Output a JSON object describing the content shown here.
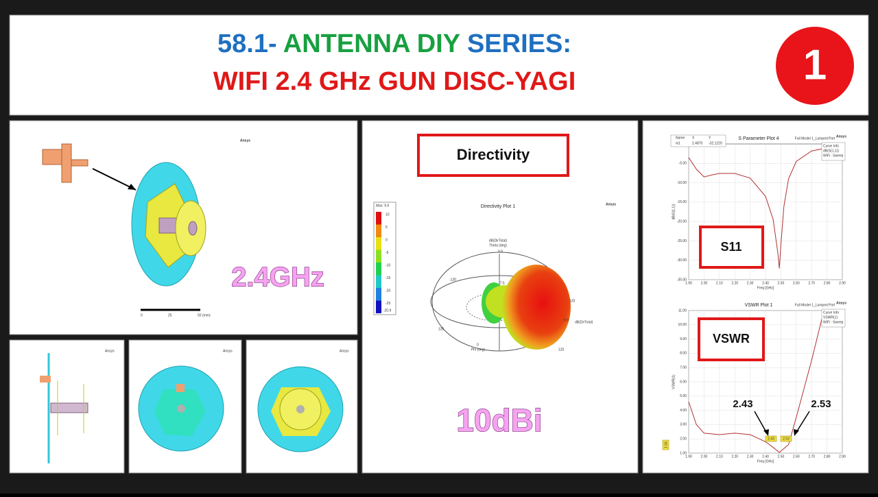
{
  "header": {
    "line1": [
      "58.1-",
      "ANTENNA DIY",
      "SERIES:"
    ],
    "line2": "WIFI 2.4 GHz GUN DISC-YAGI",
    "badge": "1"
  },
  "model_panel": {
    "brand": "Ansys",
    "label": "2.4GHz",
    "scale": [
      "0",
      "25",
      "50 (mm)"
    ]
  },
  "small_panels": [
    {
      "brand": "Ansys"
    },
    {
      "brand": "Ansys"
    },
    {
      "brand": "Ansys"
    }
  ],
  "directivity": {
    "button": "Directivity",
    "title": "Directivity Plot 1",
    "brand": "Ansys",
    "max": "Max: 9.9",
    "min": "Min: -20.9",
    "colorbar": {
      "ticks": [
        10,
        5,
        0,
        -5,
        -10,
        -15,
        -20,
        -25
      ],
      "colors": [
        "#e01010",
        "#f08a10",
        "#e8e010",
        "#8ce020",
        "#20d050",
        "#20c8c8",
        "#2080e0",
        "#1010c0"
      ]
    },
    "axis_labels": [
      "dB(DirTotal)",
      "Theta (deg)",
      "Phi (deg)",
      "dB(DirTotal)"
    ],
    "polar_labels": [
      "9.9",
      "-120",
      "-7.5",
      "120",
      "9.9",
      "120",
      "0",
      "120"
    ],
    "gain_label": "10dBi"
  },
  "s11": {
    "title": "S Parameter Plot 4",
    "subtitle": "Full Model 1_Lumped Port",
    "brand": "Ansys",
    "ylabel": "dB(S(1,1))",
    "xlabel": "Freq [GHz]",
    "legend": [
      "Curve Info",
      "dB(S(1,1))",
      "WiFi : Sweep"
    ],
    "marker_table": {
      "headers": [
        "Name",
        "X",
        "Y"
      ],
      "row": [
        "m1",
        "2.4870",
        "-32.1220"
      ]
    },
    "callout": "S11",
    "color": "#b03030",
    "x": [
      1.9,
      1.95,
      2.0,
      2.05,
      2.1,
      2.2,
      2.3,
      2.4,
      2.45,
      2.48,
      2.49,
      2.5,
      2.52,
      2.55,
      2.6,
      2.7,
      2.8,
      2.9
    ],
    "values": [
      -3.5,
      -6.5,
      -8.5,
      -8.0,
      -7.6,
      -7.6,
      -8.8,
      -13.5,
      -19.5,
      -28,
      -32.1,
      -26,
      -16,
      -9,
      -4.5,
      -1.8,
      -1.0,
      -0.9
    ],
    "xlim": [
      1.9,
      2.9
    ],
    "ylim": [
      -35,
      0
    ],
    "xticks": [
      {
        "value": 1.9,
        "label": "1.90"
      },
      {
        "value": 2.0,
        "label": "2.00"
      },
      {
        "value": 2.1,
        "label": "2.10"
      },
      {
        "value": 2.2,
        "label": "2.20"
      },
      {
        "value": 2.3,
        "label": "2.30"
      },
      {
        "value": 2.4,
        "label": "2.40"
      },
      {
        "value": 2.5,
        "label": "2.50"
      },
      {
        "value": 2.6,
        "label": "2.60"
      },
      {
        "value": 2.7,
        "label": "2.70"
      },
      {
        "value": 2.8,
        "label": "2.80"
      },
      {
        "value": 2.9,
        "label": "2.90"
      }
    ],
    "yticks": [
      {
        "value": -35,
        "label": "-35.00"
      },
      {
        "value": -30,
        "label": "-30.00"
      },
      {
        "value": -25,
        "label": "-25.00"
      },
      {
        "value": -20,
        "label": "-20.00"
      },
      {
        "value": -15,
        "label": "-15.00"
      },
      {
        "value": -10,
        "label": "-10.00"
      },
      {
        "value": -5,
        "label": "-5.00"
      }
    ]
  },
  "vswr": {
    "title": "VSWR Plot 1",
    "subtitle": "Full Model 1_Lumped Port",
    "brand": "Ansys",
    "ylabel": "VSWR(1)",
    "xlabel": "Freq [GHz]",
    "legend": [
      "Curve Info",
      "VSWR(1)",
      "WiFi : Sweep"
    ],
    "callout": "VSWR",
    "color": "#b03030",
    "annotations": [
      "2.43",
      "2.53"
    ],
    "marker_labels": [
      "2.43",
      "2.53"
    ],
    "y_marker": "1.56",
    "x": [
      1.9,
      1.95,
      2.0,
      2.1,
      2.2,
      2.3,
      2.4,
      2.45,
      2.49,
      2.55,
      2.6,
      2.7,
      2.78
    ],
    "values": [
      4.6,
      3.0,
      2.4,
      2.3,
      2.4,
      2.3,
      1.8,
      1.4,
      1.05,
      1.6,
      3.5,
      7.5,
      11.0
    ],
    "xlim": [
      1.9,
      2.9
    ],
    "ylim": [
      1,
      11
    ],
    "xticks": [
      {
        "value": 1.9,
        "label": "1.90"
      },
      {
        "value": 2.0,
        "label": "2.00"
      },
      {
        "value": 2.1,
        "label": "2.10"
      },
      {
        "value": 2.2,
        "label": "2.20"
      },
      {
        "value": 2.3,
        "label": "2.30"
      },
      {
        "value": 2.4,
        "label": "2.40"
      },
      {
        "value": 2.5,
        "label": "2.50"
      },
      {
        "value": 2.6,
        "label": "2.60"
      },
      {
        "value": 2.7,
        "label": "2.70"
      },
      {
        "value": 2.8,
        "label": "2.80"
      },
      {
        "value": 2.9,
        "label": "2.90"
      }
    ],
    "yticks": [
      {
        "value": 1,
        "label": "1.00"
      },
      {
        "value": 2,
        "label": "2.00"
      },
      {
        "value": 3,
        "label": "3.00"
      },
      {
        "value": 4,
        "label": "4.00"
      },
      {
        "value": 5,
        "label": "5.00"
      },
      {
        "value": 6,
        "label": "6.00"
      },
      {
        "value": 7,
        "label": "7.00"
      },
      {
        "value": 8,
        "label": "8.00"
      },
      {
        "value": 9,
        "label": "9.00"
      },
      {
        "value": 10,
        "label": "10.00"
      },
      {
        "value": 11,
        "label": "11.00"
      }
    ]
  }
}
